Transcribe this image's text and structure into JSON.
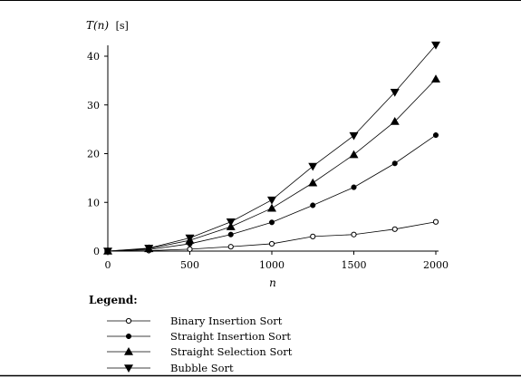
{
  "chart_data": {
    "type": "line",
    "y_axis_label_func": "T(n)",
    "y_axis_label_unit": "[s]",
    "xlabel": "n",
    "xlim": [
      0,
      2000
    ],
    "ylim": [
      0,
      42.5
    ],
    "x_ticks": [
      0,
      500,
      1000,
      1500,
      2000
    ],
    "y_ticks": [
      0,
      10,
      20,
      30,
      40
    ],
    "x_tick_labels": [
      "0",
      "500",
      "1000",
      "1500",
      "2000"
    ],
    "y_tick_labels": [
      "0",
      "10",
      "20",
      "30",
      "40"
    ],
    "grid": false,
    "legend_title": "Legend:",
    "legend_placement": "bottom",
    "x": [
      0,
      250,
      500,
      750,
      1000,
      1250,
      1500,
      1750,
      2000
    ],
    "series": [
      {
        "name": "Binary Insertion Sort",
        "marker": "open-circle",
        "values": [
          0,
          0.1,
          0.4,
          0.9,
          1.5,
          3.0,
          3.4,
          4.5,
          6.0
        ]
      },
      {
        "name": "Straight Insertion Sort",
        "marker": "filled-circle",
        "values": [
          0,
          0.3,
          1.5,
          3.4,
          5.9,
          9.4,
          13.1,
          18.0,
          23.8
        ]
      },
      {
        "name": "Straight Selection Sort",
        "marker": "triangle-up",
        "values": [
          0,
          0.5,
          2.2,
          5.0,
          8.8,
          14.0,
          19.8,
          26.6,
          35.3
        ]
      },
      {
        "name": "Bubble Sort",
        "marker": "triangle-down",
        "values": [
          0,
          0.6,
          2.7,
          6.0,
          10.5,
          17.4,
          23.7,
          32.6,
          42.3
        ]
      }
    ]
  }
}
